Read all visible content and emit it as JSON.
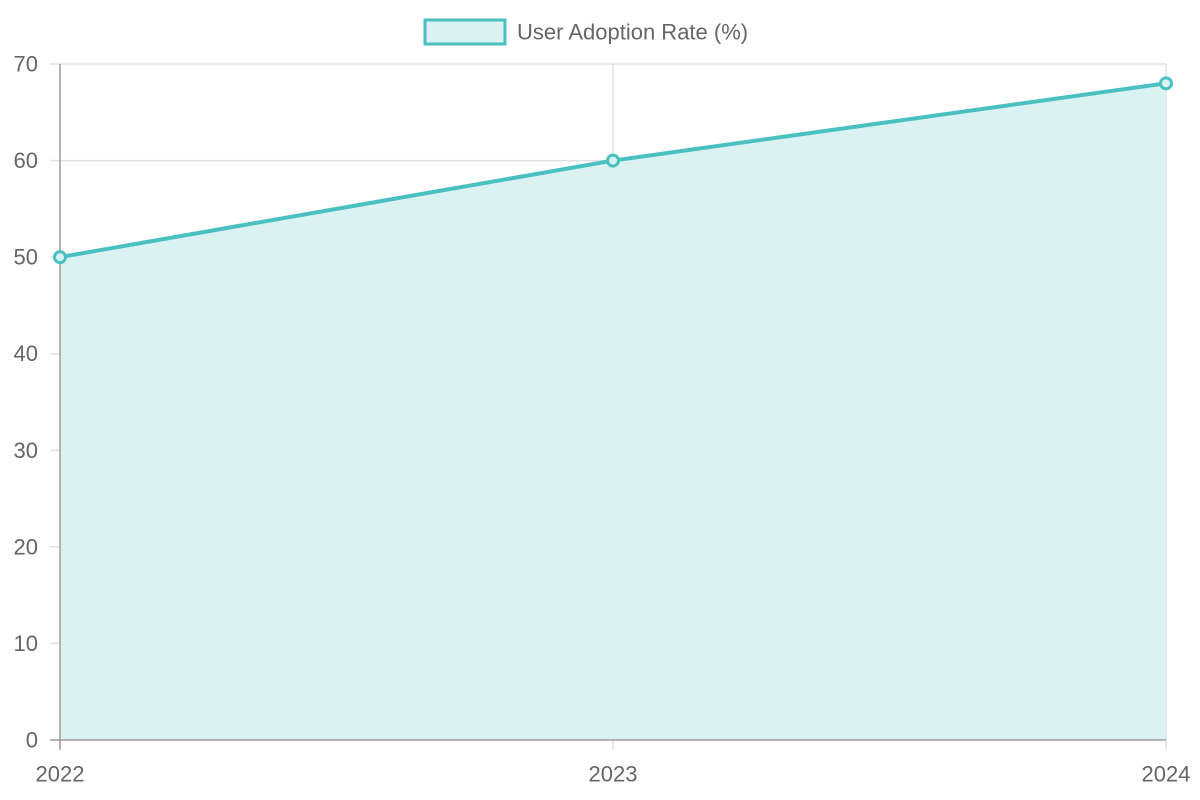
{
  "chart_data": {
    "type": "area",
    "title": "",
    "xlabel": "",
    "ylabel": "",
    "categories": [
      "2022",
      "2023",
      "2024"
    ],
    "series": [
      {
        "name": "User Adoption Rate (%)",
        "values": [
          50,
          60,
          68
        ],
        "color": "#4bc0c0",
        "fill": "#daf2f2"
      }
    ],
    "ylim": [
      0,
      70
    ],
    "yticks": [
      0,
      10,
      20,
      30,
      40,
      50,
      60,
      70
    ],
    "yticklabels": [
      "0",
      "10",
      "20",
      "30",
      "40",
      "50",
      "60",
      "70"
    ],
    "grid": true,
    "legend_position": "top-center"
  }
}
